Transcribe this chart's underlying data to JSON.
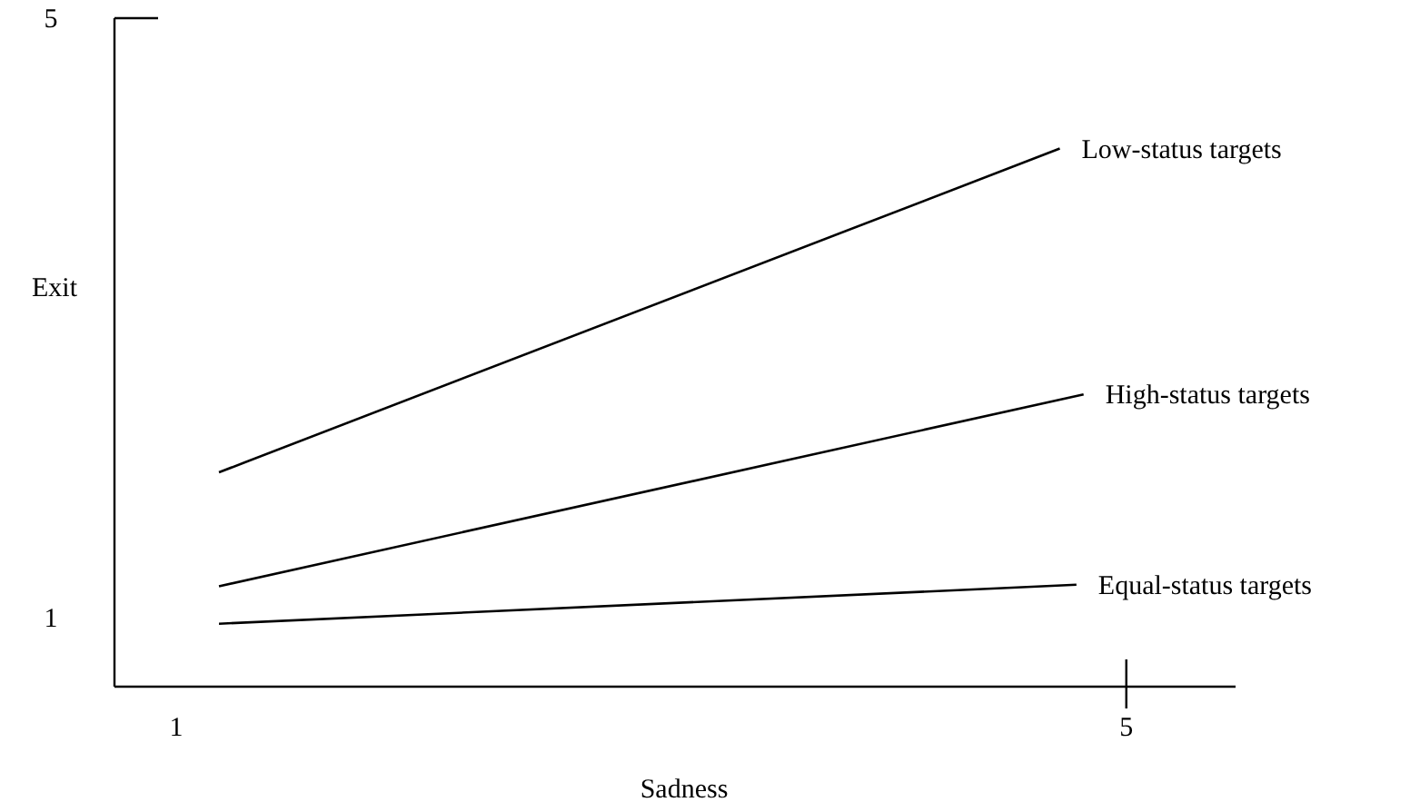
{
  "chart_data": {
    "type": "line",
    "xlabel": "Sadness",
    "ylabel": "Exit",
    "xlim": [
      0.74,
      5.46
    ],
    "ylim": [
      0.54,
      5
    ],
    "xticks": [
      1,
      5
    ],
    "yticks": [
      1,
      5
    ],
    "grid": false,
    "marker": "none",
    "line_style": "solid",
    "series": [
      {
        "name": "Low-status targets",
        "color": "#000000",
        "x": [
          1.18,
          4.72
        ],
        "values": [
          1.97,
          4.13
        ]
      },
      {
        "name": "High-status targets",
        "color": "#000000",
        "x": [
          1.18,
          4.82
        ],
        "values": [
          1.21,
          2.49
        ]
      },
      {
        "name": "Equal-status targets",
        "color": "#000000",
        "x": [
          1.18,
          4.79
        ],
        "values": [
          0.96,
          1.22
        ]
      }
    ]
  }
}
